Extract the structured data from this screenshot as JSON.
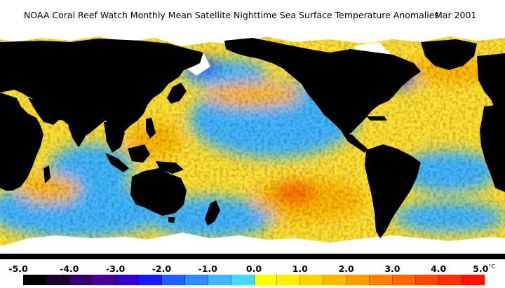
{
  "title": {
    "main": "NOAA Coral Reef Watch Monthly Mean Satellite Nighttime Sea Surface Temperature Anomalies",
    "date": "Mar 2001"
  },
  "colorbar": {
    "unit": "°C",
    "ticks": [
      "-5.0",
      "-4.0",
      "-3.0",
      "-2.0",
      "-1.0",
      "0.0",
      "1.0",
      "2.0",
      "3.0",
      "4.0",
      "5.0"
    ],
    "colors": [
      "#000000",
      "#1a0033",
      "#33006b",
      "#4b0096",
      "#3300cc",
      "#1a1aff",
      "#1f5fff",
      "#2e8cff",
      "#3fb6ff",
      "#47d7ff",
      "#ffff00",
      "#ffee00",
      "#ffd200",
      "#ffb800",
      "#ff9c00",
      "#ff8000",
      "#ff6400",
      "#ff4800",
      "#ff2c00",
      "#ff1000"
    ]
  },
  "map_colors": {
    "land": "#000000",
    "ice": "#ffffff",
    "ocean_neutral": "#ffe033",
    "ocean_cool": "#3fb6ff",
    "ocean_cold": "#1f5fff",
    "ocean_warm": "#ffb800",
    "ocean_hot": "#ff6400"
  }
}
